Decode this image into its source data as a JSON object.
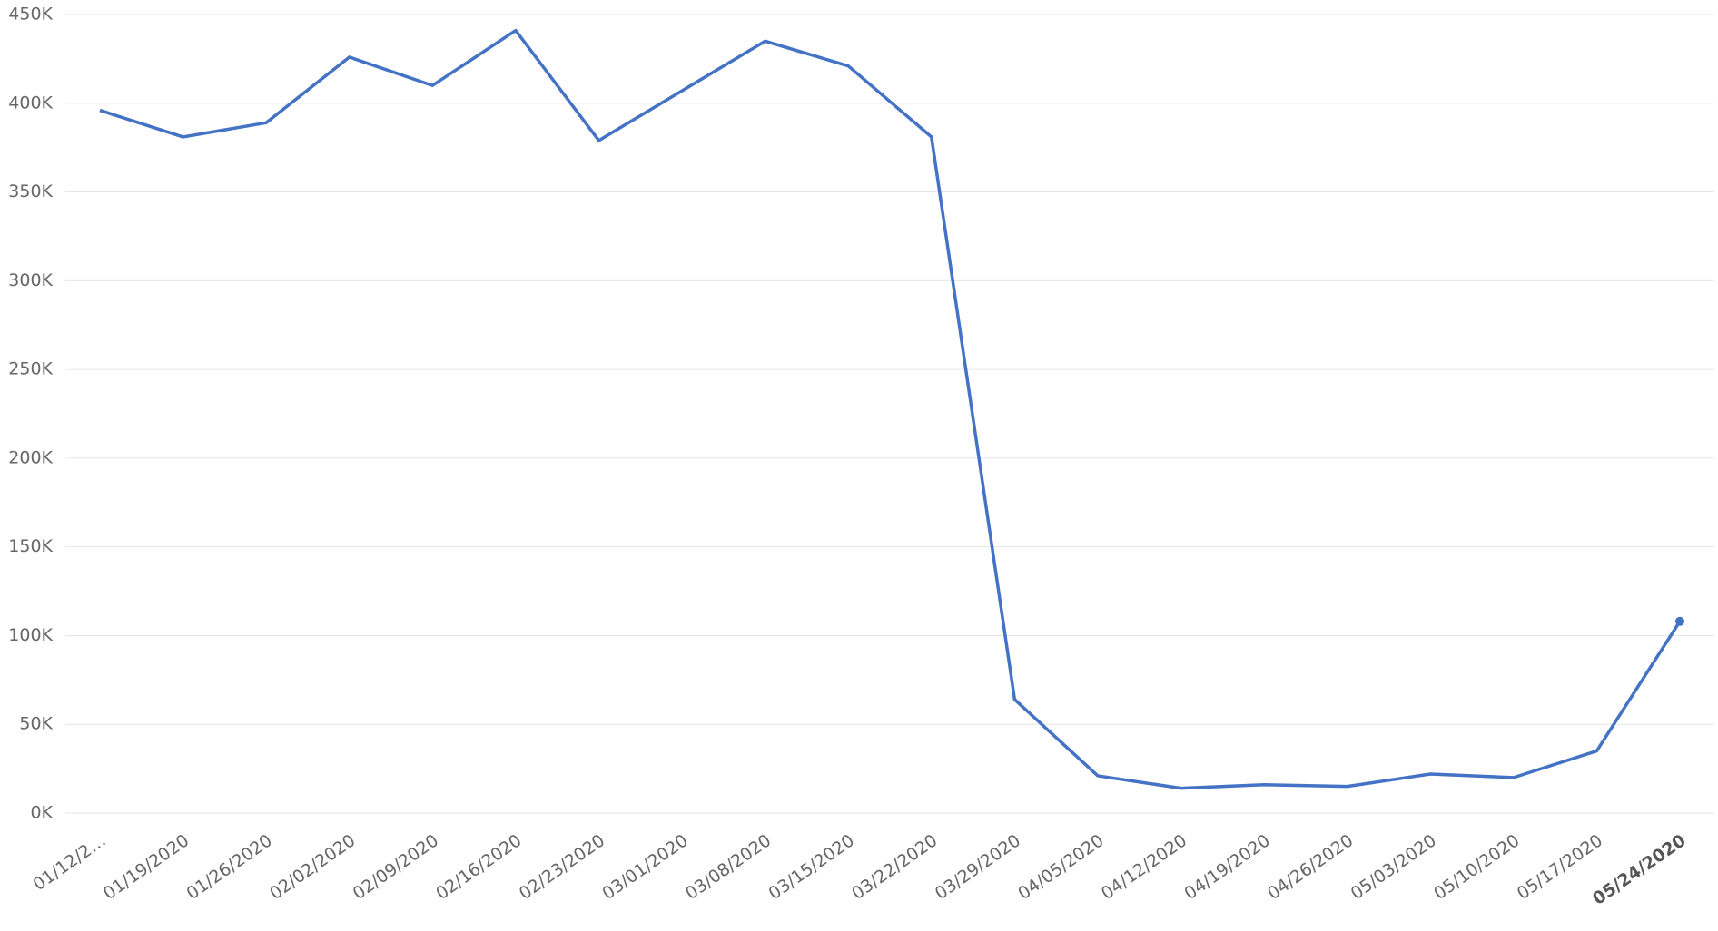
{
  "chart_data": {
    "type": "line",
    "categories": [
      "01/12/2…",
      "01/19/2020",
      "01/26/2020",
      "02/02/2020",
      "02/09/2020",
      "02/16/2020",
      "02/23/2020",
      "03/01/2020",
      "03/08/2020",
      "03/15/2020",
      "03/22/2020",
      "03/29/2020",
      "04/05/2020",
      "04/12/2020",
      "04/19/2020",
      "04/26/2020",
      "05/03/2020",
      "05/10/2020",
      "05/17/2020",
      "05/24/2020"
    ],
    "series": [
      {
        "color": "#4472c4",
        "values": [
          396000,
          381000,
          389000,
          426000,
          410000,
          441000,
          379000,
          407000,
          435000,
          421000,
          381000,
          64000,
          21000,
          14000,
          16000,
          15000,
          22000,
          20000,
          35000,
          108000
        ]
      }
    ],
    "ylim": [
      0,
      450000
    ],
    "yticks": [
      {
        "value": 0,
        "label": "0K"
      },
      {
        "value": 50000,
        "label": "50K"
      },
      {
        "value": 100000,
        "label": "100K"
      },
      {
        "value": 150000,
        "label": "150K"
      },
      {
        "value": 200000,
        "label": "200K"
      },
      {
        "value": 250000,
        "label": "250K"
      },
      {
        "value": 300000,
        "label": "300K"
      },
      {
        "value": 350000,
        "label": "350K"
      },
      {
        "value": 400000,
        "label": "400K"
      },
      {
        "value": 450000,
        "label": "450K"
      }
    ],
    "grid": true
  }
}
